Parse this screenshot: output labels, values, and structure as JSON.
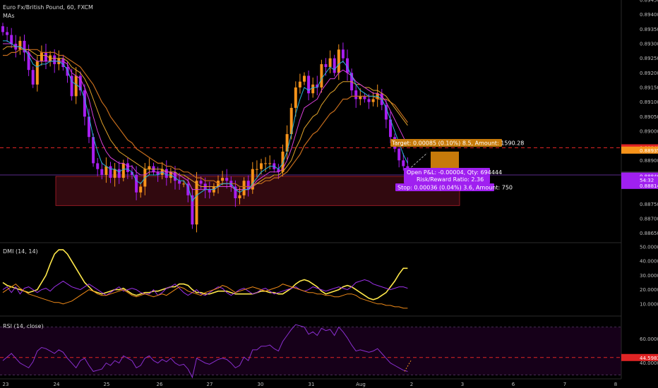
{
  "header": {
    "symbol_title": "Euro Fx/British Pound, 60, FXCM",
    "indicator": "MAs"
  },
  "colors": {
    "bull": "#f7931a",
    "bear": "#a81ef0",
    "ma_fast": "#26b6d9",
    "ma_mid": "#d73fd8",
    "ma_slow": "#e0a22a",
    "ma_slower": "#c46c1c",
    "zone_fill": "#3a0b12",
    "zone_border": "#b01e2a",
    "level_red": "#e02424",
    "target_fill": "#c77a0a",
    "stop_fill": "#a020f0",
    "dmi_yellow": "#ffe84a",
    "dmi_orange": "#f08a18",
    "dmi_purple": "#9b30e8",
    "rsi_line": "#8a2fd0",
    "rsi_bg": "#160019",
    "grid": "#151515"
  },
  "chart_data": [
    {
      "type": "candlestick",
      "title": "Euro Fx/British Pound, 60, FXCM",
      "xlabel": "",
      "ylabel": "",
      "ylim": [
        0.8862,
        0.8945
      ],
      "x_ticks": [
        "23",
        "24",
        "25",
        "26",
        "27",
        "30",
        "31",
        "Aug",
        "2",
        "3",
        "6",
        "7",
        "8"
      ],
      "y_ticks": [
        "0.89450",
        "0.89400",
        "0.89350",
        "0.89300",
        "0.89250",
        "0.89200",
        "0.89150",
        "0.89100",
        "0.89050",
        "0.89000",
        "0.88900",
        "0.88850",
        "0.88750",
        "0.88700",
        "0.88650"
      ],
      "price_labels": [
        {
          "text": "0.88943",
          "value": 0.88943,
          "color": "#e02424"
        },
        {
          "text": "0.88935",
          "value": 0.88935,
          "color": "#f7931a"
        },
        {
          "text": "0.88850",
          "value": 0.8885,
          "color": "#2b2b2b"
        },
        {
          "text": "0.88846",
          "value": 0.88846,
          "color": "#a020f0"
        },
        {
          "text": "54:32",
          "value": 0.88833,
          "color": "#a020f0"
        },
        {
          "text": "0.88814",
          "value": 0.88814,
          "color": "#a020f0"
        }
      ],
      "close_path": [
        0.8934,
        0.8933,
        0.893,
        0.8928,
        0.8931,
        0.8927,
        0.8921,
        0.8916,
        0.8924,
        0.8927,
        0.8924,
        0.8926,
        0.8923,
        0.8925,
        0.8922,
        0.8919,
        0.8912,
        0.8919,
        0.8914,
        0.8905,
        0.8898,
        0.8889,
        0.8887,
        0.8885,
        0.8888,
        0.8884,
        0.8887,
        0.8884,
        0.8889,
        0.8886,
        0.8885,
        0.8879,
        0.8881,
        0.8887,
        0.8888,
        0.8886,
        0.8885,
        0.8887,
        0.8884,
        0.8886,
        0.8883,
        0.8882,
        0.8882,
        0.8878,
        0.8868,
        0.8883,
        0.8882,
        0.888,
        0.8879,
        0.8881,
        0.8883,
        0.8884,
        0.8883,
        0.8881,
        0.8877,
        0.8878,
        0.8883,
        0.888,
        0.8887,
        0.8887,
        0.8889,
        0.8889,
        0.8889,
        0.8887,
        0.8886,
        0.8893,
        0.8899,
        0.8908,
        0.8915,
        0.8917,
        0.8919,
        0.8913,
        0.8916,
        0.8915,
        0.8923,
        0.8922,
        0.8925,
        0.892,
        0.8928,
        0.8925,
        0.892,
        0.8914,
        0.8911,
        0.8912,
        0.8911,
        0.891,
        0.8911,
        0.8913,
        0.8909,
        0.8904,
        0.8898,
        0.8894,
        0.889,
        0.8888,
        0.8885
      ],
      "ma_fast": [
        0.8931,
        0.8931,
        0.893,
        0.8929,
        0.8929,
        0.8928,
        0.8926,
        0.8923,
        0.8922,
        0.8923,
        0.8923,
        0.8924,
        0.8924,
        0.8924,
        0.8923,
        0.8921,
        0.8917,
        0.8916,
        0.8915,
        0.8911,
        0.8905,
        0.8898,
        0.8893,
        0.8889,
        0.8888,
        0.8887,
        0.8887,
        0.8886,
        0.8887,
        0.8887,
        0.8886,
        0.8883,
        0.8882,
        0.8884,
        0.8885,
        0.8885,
        0.8885,
        0.8886,
        0.8885,
        0.8885,
        0.8884,
        0.8883,
        0.8883,
        0.8881,
        0.8876,
        0.8878,
        0.8879,
        0.888,
        0.888,
        0.888,
        0.8881,
        0.8882,
        0.8882,
        0.8882,
        0.888,
        0.8879,
        0.888,
        0.888,
        0.8882,
        0.8884,
        0.8886,
        0.8887,
        0.8888,
        0.8888,
        0.8887,
        0.8889,
        0.8893,
        0.8899,
        0.8906,
        0.8911,
        0.8915,
        0.8914,
        0.8915,
        0.8915,
        0.8918,
        0.892,
        0.8922,
        0.8921,
        0.8923,
        0.8924,
        0.8922,
        0.8919,
        0.8916,
        0.8914,
        0.8913,
        0.8912,
        0.8912,
        0.8912,
        0.8911,
        0.8908,
        0.8904,
        0.89,
        0.8896,
        0.8892,
        0.8889
      ],
      "ma_mid": [
        0.893,
        0.893,
        0.893,
        0.8929,
        0.8929,
        0.8928,
        0.8927,
        0.8925,
        0.8924,
        0.8924,
        0.8924,
        0.8924,
        0.8924,
        0.8924,
        0.8924,
        0.8923,
        0.892,
        0.8919,
        0.8918,
        0.8915,
        0.8911,
        0.8905,
        0.89,
        0.8896,
        0.8893,
        0.8891,
        0.889,
        0.8889,
        0.8889,
        0.8888,
        0.8888,
        0.8886,
        0.8885,
        0.8885,
        0.8886,
        0.8886,
        0.8886,
        0.8886,
        0.8886,
        0.8886,
        0.8885,
        0.8885,
        0.8884,
        0.8883,
        0.888,
        0.888,
        0.888,
        0.888,
        0.888,
        0.888,
        0.8881,
        0.8881,
        0.8881,
        0.8881,
        0.888,
        0.888,
        0.888,
        0.888,
        0.8881,
        0.8883,
        0.8884,
        0.8885,
        0.8886,
        0.8886,
        0.8886,
        0.8887,
        0.889,
        0.8894,
        0.8899,
        0.8904,
        0.8908,
        0.8909,
        0.891,
        0.8911,
        0.8914,
        0.8916,
        0.8918,
        0.8918,
        0.892,
        0.8921,
        0.892,
        0.8919,
        0.8917,
        0.8916,
        0.8915,
        0.8914,
        0.8913,
        0.8913,
        0.8912,
        0.891,
        0.8907,
        0.8904,
        0.8901,
        0.8898,
        0.8895
      ],
      "ma_slow": [
        0.8928,
        0.8929,
        0.8929,
        0.8929,
        0.8929,
        0.8928,
        0.8928,
        0.8927,
        0.8926,
        0.8926,
        0.8926,
        0.8925,
        0.8925,
        0.8925,
        0.8925,
        0.8924,
        0.8922,
        0.8921,
        0.892,
        0.8918,
        0.8915,
        0.8911,
        0.8907,
        0.8903,
        0.89,
        0.8897,
        0.8895,
        0.8893,
        0.8892,
        0.8891,
        0.889,
        0.8889,
        0.8888,
        0.8887,
        0.8887,
        0.8887,
        0.8887,
        0.8887,
        0.8886,
        0.8886,
        0.8886,
        0.8885,
        0.8885,
        0.8884,
        0.8883,
        0.8882,
        0.8881,
        0.8881,
        0.8881,
        0.8881,
        0.8881,
        0.8881,
        0.8881,
        0.8881,
        0.888,
        0.888,
        0.888,
        0.888,
        0.8881,
        0.8882,
        0.8883,
        0.8884,
        0.8884,
        0.8885,
        0.8885,
        0.8886,
        0.8888,
        0.889,
        0.8894,
        0.8897,
        0.8901,
        0.8903,
        0.8905,
        0.8906,
        0.8909,
        0.8911,
        0.8913,
        0.8914,
        0.8916,
        0.8917,
        0.8917,
        0.8917,
        0.8916,
        0.8916,
        0.8915,
        0.8915,
        0.8914,
        0.8914,
        0.8913,
        0.8912,
        0.891,
        0.8908,
        0.8906,
        0.8904,
        0.8902
      ],
      "ma_slower": [
        0.8926,
        0.8926,
        0.8927,
        0.8927,
        0.8928,
        0.8928,
        0.8928,
        0.8928,
        0.8928,
        0.8927,
        0.8927,
        0.8927,
        0.8927,
        0.8926,
        0.8926,
        0.8925,
        0.8924,
        0.8923,
        0.8922,
        0.892,
        0.8918,
        0.8916,
        0.8913,
        0.891,
        0.8908,
        0.8905,
        0.8903,
        0.8901,
        0.8899,
        0.8897,
        0.8896,
        0.8894,
        0.8893,
        0.8892,
        0.8891,
        0.889,
        0.8889,
        0.8889,
        0.8888,
        0.8888,
        0.8887,
        0.8887,
        0.8886,
        0.8886,
        0.8885,
        0.8884,
        0.8884,
        0.8883,
        0.8883,
        0.8883,
        0.8882,
        0.8882,
        0.8882,
        0.8882,
        0.8882,
        0.8881,
        0.8881,
        0.8881,
        0.8881,
        0.8882,
        0.8882,
        0.8883,
        0.8883,
        0.8884,
        0.8884,
        0.8885,
        0.8886,
        0.8888,
        0.889,
        0.8892,
        0.8895,
        0.8897,
        0.8899,
        0.89,
        0.8902,
        0.8904,
        0.8906,
        0.8907,
        0.8909,
        0.8911,
        0.8911,
        0.8912,
        0.8912,
        0.8912,
        0.8912,
        0.8912,
        0.8912,
        0.8911,
        0.8911,
        0.8911,
        0.891,
        0.8909,
        0.8907,
        0.8905,
        0.8903
      ],
      "support_zone": {
        "from": 0.88745,
        "to": 0.88845
      },
      "horizontal_levels": [
        {
          "value": 0.88943,
          "style": "dashed",
          "color": "#e02424"
        },
        {
          "value": 0.8885,
          "style": "solid",
          "color": "#5a2a8a"
        }
      ],
      "position_tool": {
        "target_label": "Target: 0.00085 (0.10%) 8.5, Amount: 1590.28",
        "pnl_label_1": "Open P&L: -0.00004, Qty: 694444",
        "pnl_label_2": "Risk/Reward Ratio: 2.36",
        "stop_label": "Stop: 0.00036 (0.04%) 3.6, Amount: 750",
        "entry": 0.8885,
        "target": 0.88935,
        "stop": 0.88814
      }
    },
    {
      "type": "line",
      "title": "DMI (14, 14)",
      "ylim": [
        2,
        52
      ],
      "y_ticks": [
        "50.0000",
        "40.0000",
        "30.0000",
        "20.0000",
        "10.0000"
      ],
      "series": [
        {
          "name": "",
          "color": "#ffe84a",
          "values": [
            25,
            23,
            22,
            21,
            20,
            19,
            18,
            19,
            20,
            25,
            30,
            38,
            45,
            48,
            48,
            45,
            40,
            35,
            30,
            25,
            22,
            19,
            18,
            17,
            18,
            19,
            20,
            20,
            21,
            19,
            17,
            16,
            17,
            18,
            18,
            19,
            19,
            20,
            21,
            22,
            22,
            24,
            24,
            23,
            20,
            18,
            18,
            17,
            17,
            18,
            19,
            19,
            19,
            18,
            17,
            17,
            17,
            17,
            17,
            18,
            19,
            19,
            18,
            18,
            17,
            17,
            19,
            21,
            24,
            26,
            27,
            26,
            24,
            22,
            19,
            17,
            18,
            19,
            20,
            22,
            23,
            22,
            20,
            18,
            16,
            14,
            13,
            14,
            16,
            18,
            22,
            26,
            31,
            35,
            35
          ]
        },
        {
          "name": "",
          "color": "#9b30e8",
          "values": [
            20,
            22,
            18,
            22,
            17,
            21,
            22,
            20,
            18,
            20,
            21,
            19,
            22,
            24,
            26,
            24,
            22,
            21,
            20,
            22,
            24,
            22,
            20,
            18,
            16,
            18,
            20,
            22,
            19,
            20,
            21,
            20,
            18,
            17,
            17,
            20,
            16,
            18,
            21,
            22,
            24,
            21,
            18,
            16,
            18,
            20,
            17,
            16,
            18,
            20,
            22,
            21,
            18,
            16,
            18,
            20,
            21,
            19,
            17,
            18,
            20,
            21,
            19,
            17,
            18,
            19,
            20,
            21,
            22,
            20,
            19,
            20,
            22,
            21,
            20,
            19,
            20,
            21,
            22,
            21,
            20,
            22,
            25,
            26,
            27,
            26,
            24,
            23,
            22,
            21,
            20,
            21,
            22,
            22,
            21
          ]
        },
        {
          "name": "",
          "color": "#f08a18",
          "values": [
            18,
            20,
            22,
            24,
            21,
            19,
            17,
            16,
            15,
            14,
            13,
            12,
            11,
            11,
            10,
            11,
            12,
            14,
            16,
            18,
            20,
            19,
            17,
            16,
            16,
            17,
            18,
            19,
            20,
            18,
            16,
            15,
            16,
            17,
            16,
            15,
            16,
            17,
            16,
            18,
            20,
            22,
            21,
            19,
            18,
            17,
            16,
            18,
            19,
            20,
            21,
            23,
            22,
            20,
            18,
            19,
            20,
            21,
            22,
            21,
            20,
            19,
            20,
            21,
            22,
            24,
            23,
            22,
            21,
            20,
            19,
            18,
            18,
            17,
            17,
            16,
            16,
            15,
            15,
            16,
            17,
            17,
            16,
            14,
            13,
            12,
            11,
            10,
            10,
            9,
            9,
            8,
            8,
            7,
            7
          ]
        }
      ]
    },
    {
      "type": "line",
      "title": "RSI (14, close)",
      "ylim": [
        28,
        78
      ],
      "y_ticks": [
        "60.0000",
        "40.0000"
      ],
      "bands": [
        {
          "value": 70,
          "style": "dashed"
        },
        {
          "value": 30,
          "style": "dashed"
        }
      ],
      "levels": [
        {
          "value": 44.5983,
          "label": "44.5983",
          "color": "#e02424",
          "style": "dashed"
        }
      ],
      "series": [
        {
          "name": "",
          "color": "#8a2fd0",
          "values": [
            42,
            45,
            48,
            44,
            40,
            38,
            36,
            41,
            50,
            53,
            52,
            50,
            48,
            51,
            49,
            44,
            40,
            36,
            42,
            44,
            38,
            33,
            34,
            35,
            40,
            38,
            42,
            40,
            46,
            44,
            42,
            36,
            38,
            44,
            46,
            42,
            40,
            43,
            41,
            44,
            40,
            38,
            39,
            35,
            28,
            44,
            42,
            40,
            39,
            41,
            43,
            44,
            43,
            40,
            36,
            38,
            45,
            42,
            51,
            51,
            54,
            54,
            55,
            52,
            50,
            58,
            63,
            68,
            72,
            71,
            70,
            64,
            66,
            63,
            69,
            67,
            68,
            63,
            70,
            66,
            61,
            55,
            50,
            51,
            50,
            49,
            50,
            52,
            48,
            44,
            40,
            38,
            36,
            34,
            33
          ]
        }
      ]
    }
  ]
}
